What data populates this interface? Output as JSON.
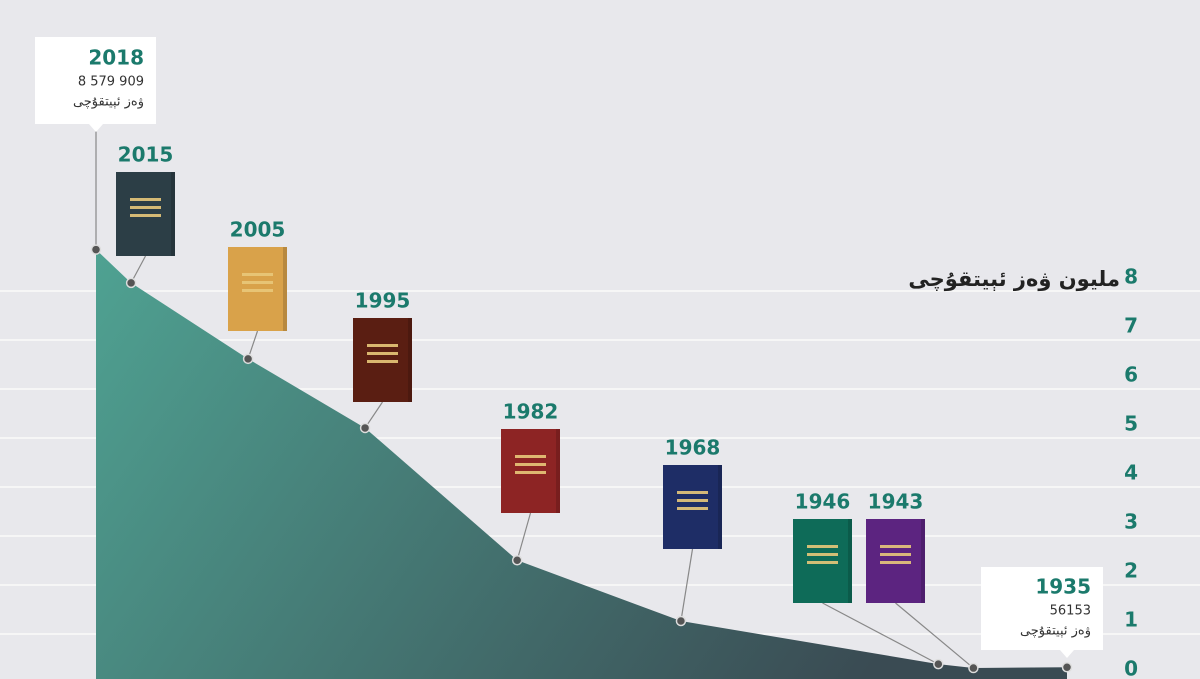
{
  "chart_data": {
    "type": "area",
    "y_axis_label": "ملیون ۋەز ئېيتقۇچى",
    "unit_label": "ۋەز ئېيتقۇچى",
    "x": [
      2018,
      2015,
      2005,
      1995,
      1982,
      1968,
      1946,
      1943,
      1935
    ],
    "xlim": [
      2018,
      1935
    ],
    "series": [
      {
        "values": [
          8.579909,
          7.9,
          6.35,
          4.94,
          2.24,
          1.0,
          0.12,
          0.04,
          0.056153
        ],
        "value_labels": [
          "8 579 909",
          null,
          null,
          null,
          null,
          null,
          null,
          null,
          "56153"
        ],
        "colors": [
          "#4fa292",
          "#3a4b53"
        ]
      }
    ],
    "book_colors": [
      null,
      "#2c3e46",
      "#d9a24a",
      "#5a1e12",
      "#8d2424",
      "#1e2d66",
      "#0e6b58",
      "#5c2480",
      null
    ],
    "ylim": [
      0,
      8
    ],
    "yticks": [
      0,
      1,
      2,
      3,
      4,
      5,
      6,
      7,
      8
    ],
    "grid": true
  }
}
